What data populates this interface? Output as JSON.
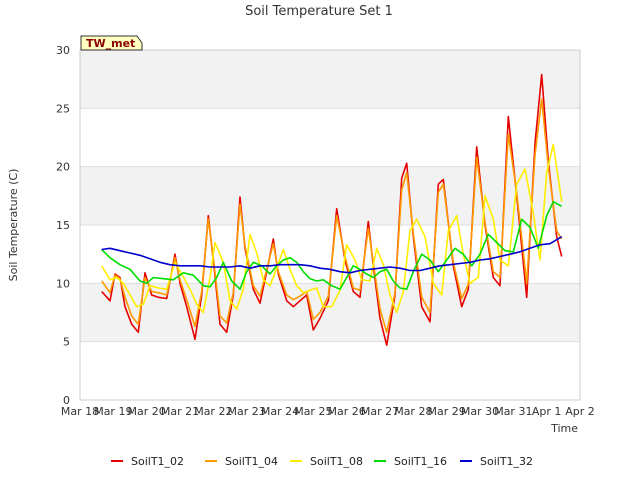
{
  "chart_data": {
    "type": "line",
    "title": "Soil Temperature Set 1",
    "xlabel": "Time",
    "ylabel": "Soil Temperature (C)",
    "station_label": "TW_met",
    "ylim": [
      0,
      30
    ],
    "yticks": [
      0,
      5,
      10,
      15,
      20,
      25,
      30
    ],
    "xlim": [
      0,
      15
    ],
    "xticks": [
      {
        "v": 0,
        "label": "Mar 18"
      },
      {
        "v": 1,
        "label": "Mar 19"
      },
      {
        "v": 2,
        "label": "Mar 20"
      },
      {
        "v": 3,
        "label": "Mar 21"
      },
      {
        "v": 4,
        "label": "Mar 22"
      },
      {
        "v": 5,
        "label": "Mar 23"
      },
      {
        "v": 6,
        "label": "Mar 24"
      },
      {
        "v": 7,
        "label": "Mar 25"
      },
      {
        "v": 8,
        "label": "Mar 26"
      },
      {
        "v": 9,
        "label": "Mar 27"
      },
      {
        "v": 10,
        "label": "Mar 28"
      },
      {
        "v": 11,
        "label": "Mar 29"
      },
      {
        "v": 12,
        "label": "Mar 30"
      },
      {
        "v": 13,
        "label": "Mar 31"
      },
      {
        "v": 14,
        "label": "Apr 1"
      },
      {
        "v": 15,
        "label": "Apr 2"
      }
    ],
    "grid": true,
    "legend_position": "bottom",
    "series": [
      {
        "name": "SoilT1_02",
        "color": "#e60000",
        "x": [
          0.65,
          0.9,
          1.05,
          1.2,
          1.35,
          1.55,
          1.75,
          1.95,
          2.15,
          2.35,
          2.6,
          2.85,
          3.0,
          3.2,
          3.45,
          3.65,
          3.85,
          4.0,
          4.2,
          4.4,
          4.6,
          4.8,
          4.95,
          5.2,
          5.4,
          5.6,
          5.8,
          5.95,
          6.2,
          6.4,
          6.6,
          6.8,
          7.0,
          7.2,
          7.45,
          7.7,
          7.95,
          8.2,
          8.4,
          8.65,
          8.8,
          9.0,
          9.2,
          9.45,
          9.65,
          9.8,
          10.0,
          10.25,
          10.5,
          10.75,
          10.9,
          11.2,
          11.45,
          11.65,
          11.9,
          12.15,
          12.4,
          12.6,
          12.85,
          13.1,
          13.4,
          13.65,
          13.85,
          14.05,
          14.3,
          14.45
        ],
        "values": [
          9.3,
          8.5,
          10.8,
          10.5,
          8.0,
          6.5,
          5.8,
          10.9,
          9.0,
          8.8,
          8.7,
          12.5,
          10.0,
          8.0,
          5.2,
          9.0,
          15.8,
          12.0,
          6.5,
          5.8,
          9.0,
          17.4,
          13.0,
          9.5,
          8.3,
          11.0,
          13.8,
          10.8,
          8.5,
          8.0,
          8.5,
          9.0,
          6.0,
          7.0,
          8.5,
          16.4,
          12.0,
          9.3,
          8.8,
          15.3,
          11.5,
          7.0,
          4.7,
          9.0,
          19.0,
          20.3,
          14.0,
          8.0,
          6.7,
          18.5,
          18.9,
          11.5,
          8.0,
          9.5,
          21.7,
          15.0,
          10.5,
          9.8,
          24.3,
          17.5,
          8.8,
          22.0,
          27.9,
          20.5,
          14.0,
          12.3
        ]
      },
      {
        "name": "SoilT1_04",
        "color": "#ff9900",
        "x": [
          0.65,
          0.9,
          1.05,
          1.2,
          1.35,
          1.55,
          1.75,
          1.95,
          2.15,
          2.35,
          2.6,
          2.85,
          3.0,
          3.2,
          3.45,
          3.65,
          3.85,
          4.0,
          4.2,
          4.4,
          4.6,
          4.8,
          4.95,
          5.2,
          5.4,
          5.6,
          5.8,
          5.95,
          6.2,
          6.4,
          6.6,
          6.8,
          7.0,
          7.2,
          7.45,
          7.7,
          7.95,
          8.2,
          8.4,
          8.65,
          8.8,
          9.0,
          9.2,
          9.45,
          9.65,
          9.8,
          10.0,
          10.25,
          10.5,
          10.75,
          10.9,
          11.2,
          11.45,
          11.65,
          11.9,
          12.15,
          12.4,
          12.6,
          12.85,
          13.1,
          13.4,
          13.65,
          13.85,
          14.05,
          14.3,
          14.45
        ],
        "values": [
          10.2,
          9.2,
          10.7,
          10.4,
          8.8,
          7.2,
          6.5,
          10.5,
          9.3,
          9.2,
          9.0,
          12.2,
          10.3,
          8.6,
          6.3,
          9.3,
          15.5,
          12.2,
          7.2,
          6.6,
          9.2,
          16.8,
          13.2,
          9.8,
          8.9,
          11.2,
          13.4,
          11.0,
          9.0,
          8.6,
          8.9,
          9.3,
          6.9,
          7.5,
          8.9,
          15.8,
          12.3,
          9.6,
          9.4,
          14.7,
          11.8,
          7.8,
          5.8,
          9.2,
          18.0,
          19.5,
          14.3,
          8.8,
          7.5,
          17.8,
          18.5,
          11.8,
          8.7,
          9.9,
          20.8,
          15.2,
          11.0,
          10.5,
          22.8,
          17.8,
          10.0,
          21.0,
          25.8,
          20.0,
          14.5,
          13.8
        ]
      },
      {
        "name": "SoilT1_08",
        "color": "#ffee00",
        "x": [
          0.65,
          0.9,
          1.1,
          1.3,
          1.5,
          1.7,
          1.9,
          2.1,
          2.35,
          2.6,
          2.85,
          3.05,
          3.3,
          3.5,
          3.7,
          3.9,
          4.05,
          4.3,
          4.5,
          4.7,
          4.9,
          5.1,
          5.3,
          5.5,
          5.7,
          5.9,
          6.1,
          6.3,
          6.5,
          6.7,
          6.9,
          7.1,
          7.3,
          7.55,
          7.8,
          8.0,
          8.25,
          8.45,
          8.7,
          8.9,
          9.1,
          9.3,
          9.5,
          9.7,
          9.9,
          10.1,
          10.35,
          10.6,
          10.85,
          11.05,
          11.3,
          11.5,
          11.7,
          11.95,
          12.15,
          12.4,
          12.6,
          12.85,
          13.1,
          13.35,
          13.6,
          13.8,
          14.0,
          14.2,
          14.45
        ],
        "values": [
          11.5,
          10.3,
          10.5,
          10.0,
          9.0,
          8.0,
          8.2,
          9.8,
          9.6,
          9.5,
          11.8,
          10.8,
          9.5,
          8.2,
          7.5,
          10.5,
          13.5,
          11.8,
          8.5,
          7.8,
          9.5,
          14.2,
          12.6,
          10.3,
          9.8,
          11.3,
          12.9,
          11.2,
          9.8,
          9.2,
          9.4,
          9.6,
          8.0,
          8.0,
          9.4,
          13.3,
          12.0,
          10.3,
          10.2,
          13.0,
          11.6,
          9.0,
          7.5,
          9.3,
          14.5,
          15.5,
          14.0,
          10.0,
          9.0,
          14.5,
          15.8,
          12.5,
          10.0,
          10.5,
          17.5,
          15.5,
          12.0,
          11.5,
          18.5,
          19.8,
          16.0,
          12.0,
          19.5,
          21.9,
          17.0
        ]
      },
      {
        "name": "SoilT1_16",
        "color": "#00dd00",
        "x": [
          0.65,
          0.9,
          1.2,
          1.5,
          1.8,
          2.0,
          2.2,
          2.5,
          2.8,
          3.1,
          3.4,
          3.7,
          3.9,
          4.1,
          4.3,
          4.55,
          4.8,
          5.0,
          5.2,
          5.45,
          5.7,
          5.9,
          6.1,
          6.3,
          6.5,
          6.7,
          6.9,
          7.1,
          7.3,
          7.55,
          7.8,
          8.0,
          8.2,
          8.4,
          8.6,
          8.8,
          9.0,
          9.2,
          9.4,
          9.6,
          9.8,
          10.0,
          10.25,
          10.5,
          10.75,
          11.0,
          11.25,
          11.5,
          11.75,
          12.0,
          12.25,
          12.5,
          12.75,
          13.0,
          13.25,
          13.5,
          13.75,
          14.0,
          14.2,
          14.45
        ],
        "values": [
          12.9,
          12.2,
          11.6,
          11.2,
          10.2,
          10.0,
          10.5,
          10.4,
          10.3,
          10.9,
          10.7,
          9.8,
          9.7,
          10.5,
          11.8,
          10.2,
          9.5,
          11.0,
          11.8,
          11.5,
          10.8,
          11.5,
          12.0,
          12.2,
          11.8,
          11.0,
          10.4,
          10.2,
          10.3,
          9.8,
          9.5,
          10.5,
          11.5,
          11.2,
          10.8,
          10.5,
          11.0,
          11.2,
          10.2,
          9.6,
          9.5,
          11.0,
          12.5,
          12.0,
          11.0,
          12.0,
          13.0,
          12.5,
          11.5,
          12.5,
          14.2,
          13.5,
          12.8,
          12.7,
          15.5,
          14.8,
          13.0,
          15.8,
          17.0,
          16.6
        ]
      },
      {
        "name": "SoilT1_32",
        "color": "#0000cc",
        "x": [
          0.65,
          0.9,
          1.2,
          1.5,
          1.8,
          2.1,
          2.4,
          2.7,
          3.0,
          3.3,
          3.6,
          3.9,
          4.2,
          4.5,
          4.8,
          5.1,
          5.4,
          5.7,
          6.0,
          6.3,
          6.6,
          6.9,
          7.2,
          7.5,
          7.8,
          8.1,
          8.4,
          8.7,
          9.0,
          9.3,
          9.6,
          9.9,
          10.2,
          10.5,
          10.8,
          11.1,
          11.4,
          11.7,
          12.0,
          12.3,
          12.6,
          12.9,
          13.2,
          13.5,
          13.8,
          14.1,
          14.45
        ],
        "values": [
          12.9,
          13.0,
          12.8,
          12.6,
          12.4,
          12.1,
          11.8,
          11.6,
          11.5,
          11.5,
          11.5,
          11.4,
          11.4,
          11.4,
          11.5,
          11.3,
          11.5,
          11.5,
          11.6,
          11.6,
          11.6,
          11.5,
          11.3,
          11.2,
          11.0,
          10.9,
          11.1,
          11.2,
          11.3,
          11.4,
          11.3,
          11.1,
          11.1,
          11.3,
          11.5,
          11.6,
          11.7,
          11.8,
          12.0,
          12.1,
          12.3,
          12.5,
          12.7,
          13.0,
          13.3,
          13.4,
          14.0
        ]
      }
    ]
  }
}
